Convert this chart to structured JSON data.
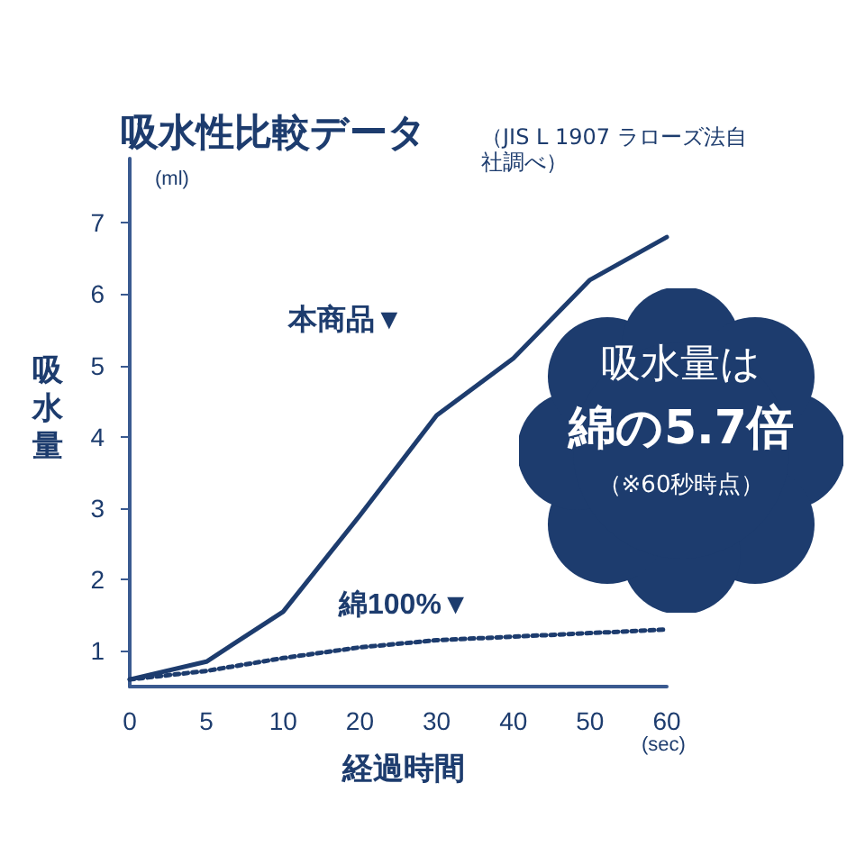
{
  "chart_data": {
    "type": "line",
    "title": "吸水性比較データ",
    "subtitle": "（JIS L 1907 ラローズ法自社調べ）",
    "xlabel": "経過時間",
    "ylabel": "吸水量",
    "categories": [
      "0",
      "5",
      "10",
      "20",
      "30",
      "40",
      "50",
      "60"
    ],
    "series": [
      {
        "name": "本商品▼",
        "color": "#1d3c6e",
        "line_style": "solid",
        "values": [
          0.6,
          0.85,
          1.55,
          2.9,
          4.3,
          5.1,
          6.2,
          6.8
        ]
      },
      {
        "name": "綿100%▼",
        "color": "#1d3c6e",
        "line_style": "dotted",
        "values": [
          0.6,
          0.72,
          0.9,
          1.05,
          1.15,
          1.2,
          1.25,
          1.3
        ]
      }
    ],
    "ylim": [
      0.5,
      7.9
    ],
    "yticks": [
      1,
      2,
      3,
      4,
      5,
      6,
      7
    ],
    "grid": false,
    "legend": false,
    "marker": "none",
    "annotations": [
      "(ml)",
      "(sec)",
      "吸水量は",
      "綿の5.7倍",
      "（※60秒時点）"
    ]
  }
}
